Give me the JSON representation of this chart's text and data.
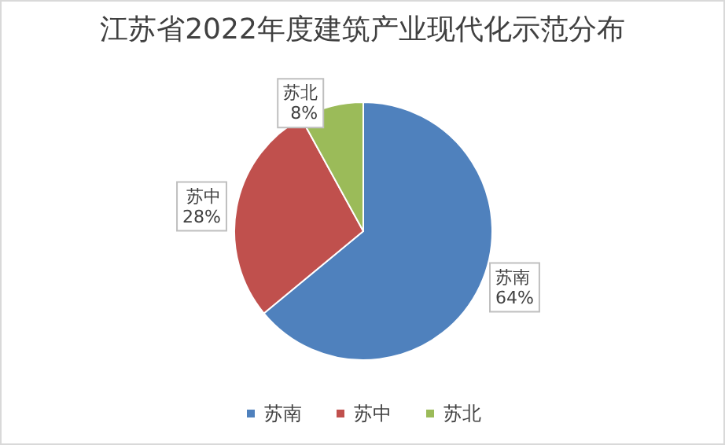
{
  "chart_data": {
    "type": "pie",
    "title": "江苏省2022年度建筑产业现代化示范分布",
    "categories": [
      "苏南",
      "苏中",
      "苏北"
    ],
    "values": [
      64,
      28,
      8
    ],
    "value_labels": [
      "64%",
      "28%",
      "8%"
    ],
    "colors": [
      "#4f81bd",
      "#c0504d",
      "#9bbb59"
    ],
    "legend": "bottom"
  }
}
